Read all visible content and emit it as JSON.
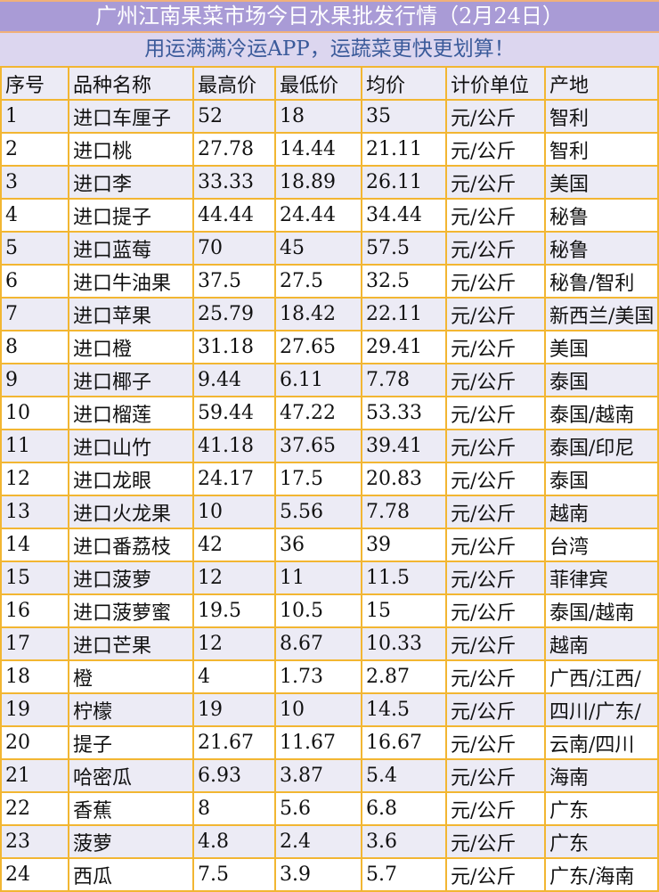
{
  "title": "广州江南果菜市场今日水果批发行情（2月24日）",
  "subtitle": "用运满满冷运APP，运蔬菜更快更划算！",
  "colors": {
    "title_bg": "#a99bd6",
    "subtitle_bg": "#dcd6ef",
    "border": "#f2b632",
    "subtitle_text": "#3a5a9a"
  },
  "headers": [
    "序号",
    "品种名称",
    "最高价",
    "最低价",
    "均价",
    "计价单位",
    "产地"
  ],
  "rows": [
    [
      "1",
      "进口车厘子",
      "52",
      "18",
      "35",
      "元/公斤",
      "智利"
    ],
    [
      "2",
      "进口桃",
      "27.78",
      "14.44",
      "21.11",
      "元/公斤",
      "智利"
    ],
    [
      "3",
      "进口李",
      "33.33",
      "18.89",
      "26.11",
      "元/公斤",
      "美国"
    ],
    [
      "4",
      "进口提子",
      "44.44",
      "24.44",
      "34.44",
      "元/公斤",
      "秘鲁"
    ],
    [
      "5",
      "进口蓝莓",
      "70",
      "45",
      "57.5",
      "元/公斤",
      "秘鲁"
    ],
    [
      "6",
      "进口牛油果",
      "37.5",
      "27.5",
      "32.5",
      "元/公斤",
      "秘鲁/智利"
    ],
    [
      "7",
      "进口苹果",
      "25.79",
      "18.42",
      "22.11",
      "元/公斤",
      "新西兰/美国"
    ],
    [
      "8",
      "进口橙",
      "31.18",
      "27.65",
      "29.41",
      "元/公斤",
      "美国"
    ],
    [
      "9",
      "进口椰子",
      "9.44",
      "6.11",
      "7.78",
      "元/公斤",
      "泰国"
    ],
    [
      "10",
      "进口榴莲",
      "59.44",
      "47.22",
      "53.33",
      "元/公斤",
      "泰国/越南"
    ],
    [
      "11",
      "进口山竹",
      "41.18",
      "37.65",
      "39.41",
      "元/公斤",
      "泰国/印尼"
    ],
    [
      "12",
      "进口龙眼",
      "24.17",
      "17.5",
      "20.83",
      "元/公斤",
      "泰国"
    ],
    [
      "13",
      "进口火龙果",
      "10",
      "5.56",
      "7.78",
      "元/公斤",
      "越南"
    ],
    [
      "14",
      "进口番荔枝",
      "42",
      "36",
      "39",
      "元/公斤",
      "台湾"
    ],
    [
      "15",
      "进口菠萝",
      "12",
      "11",
      "11.5",
      "元/公斤",
      "菲律宾"
    ],
    [
      "16",
      "进口菠萝蜜",
      "19.5",
      "10.5",
      "15",
      "元/公斤",
      "泰国/越南"
    ],
    [
      "17",
      "进口芒果",
      "12",
      "8.67",
      "10.33",
      "元/公斤",
      "越南"
    ],
    [
      "18",
      "橙",
      "4",
      "1.73",
      "2.87",
      "元/公斤",
      "广西/江西/"
    ],
    [
      "19",
      "柠檬",
      "19",
      "10",
      "14.5",
      "元/公斤",
      "四川/广东/"
    ],
    [
      "20",
      "提子",
      "21.67",
      "11.67",
      "16.67",
      "元/公斤",
      "云南/四川"
    ],
    [
      "21",
      "哈密瓜",
      "6.93",
      "3.87",
      "5.4",
      "元/公斤",
      "海南"
    ],
    [
      "22",
      "香蕉",
      "8",
      "5.6",
      "6.8",
      "元/公斤",
      "广东"
    ],
    [
      "23",
      "菠萝",
      "4.8",
      "2.4",
      "3.6",
      "元/公斤",
      "广东"
    ],
    [
      "24",
      "西瓜",
      "7.5",
      "3.9",
      "5.7",
      "元/公斤",
      "广东/海南"
    ]
  ]
}
